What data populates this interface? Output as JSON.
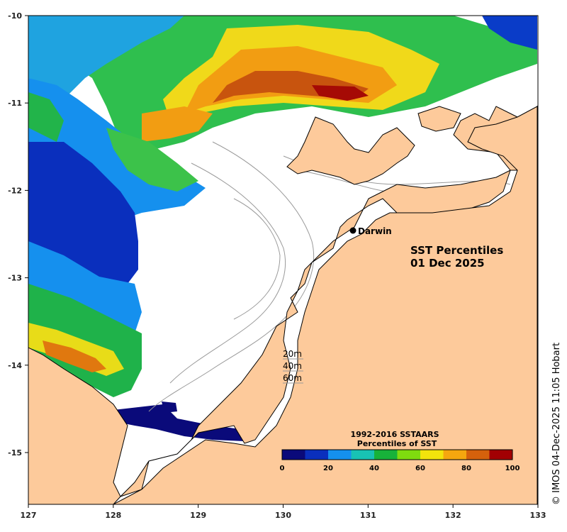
{
  "map": {
    "title_line1": "SST Percentiles",
    "title_line2": "01 Dec 2025",
    "place_label": "Darwin",
    "depth_labels": [
      "20m",
      "40m",
      "60m"
    ],
    "credit": "© IMOS 04-Dec-2025 11:05 Hobart",
    "x_ticks": [
      "127",
      "128",
      "129",
      "130",
      "131",
      "132",
      "133"
    ],
    "y_ticks": [
      "-10",
      "-11",
      "-12",
      "-13",
      "-14",
      "-15"
    ],
    "land_color": "#fdca9b",
    "no_data_color": "#ffffff"
  },
  "legend": {
    "title_line1": "1992-2016 SSTAARS",
    "title_line2": "Percentiles of SST",
    "tick_labels": [
      "0",
      "20",
      "40",
      "60",
      "80",
      "100"
    ],
    "colors": [
      "#0a0a7a",
      "#0a2fbd",
      "#1590ee",
      "#18c2b4",
      "#17b23a",
      "#7fdb0f",
      "#f2e40c",
      "#f5a70f",
      "#d5610c",
      "#a20003"
    ]
  }
}
